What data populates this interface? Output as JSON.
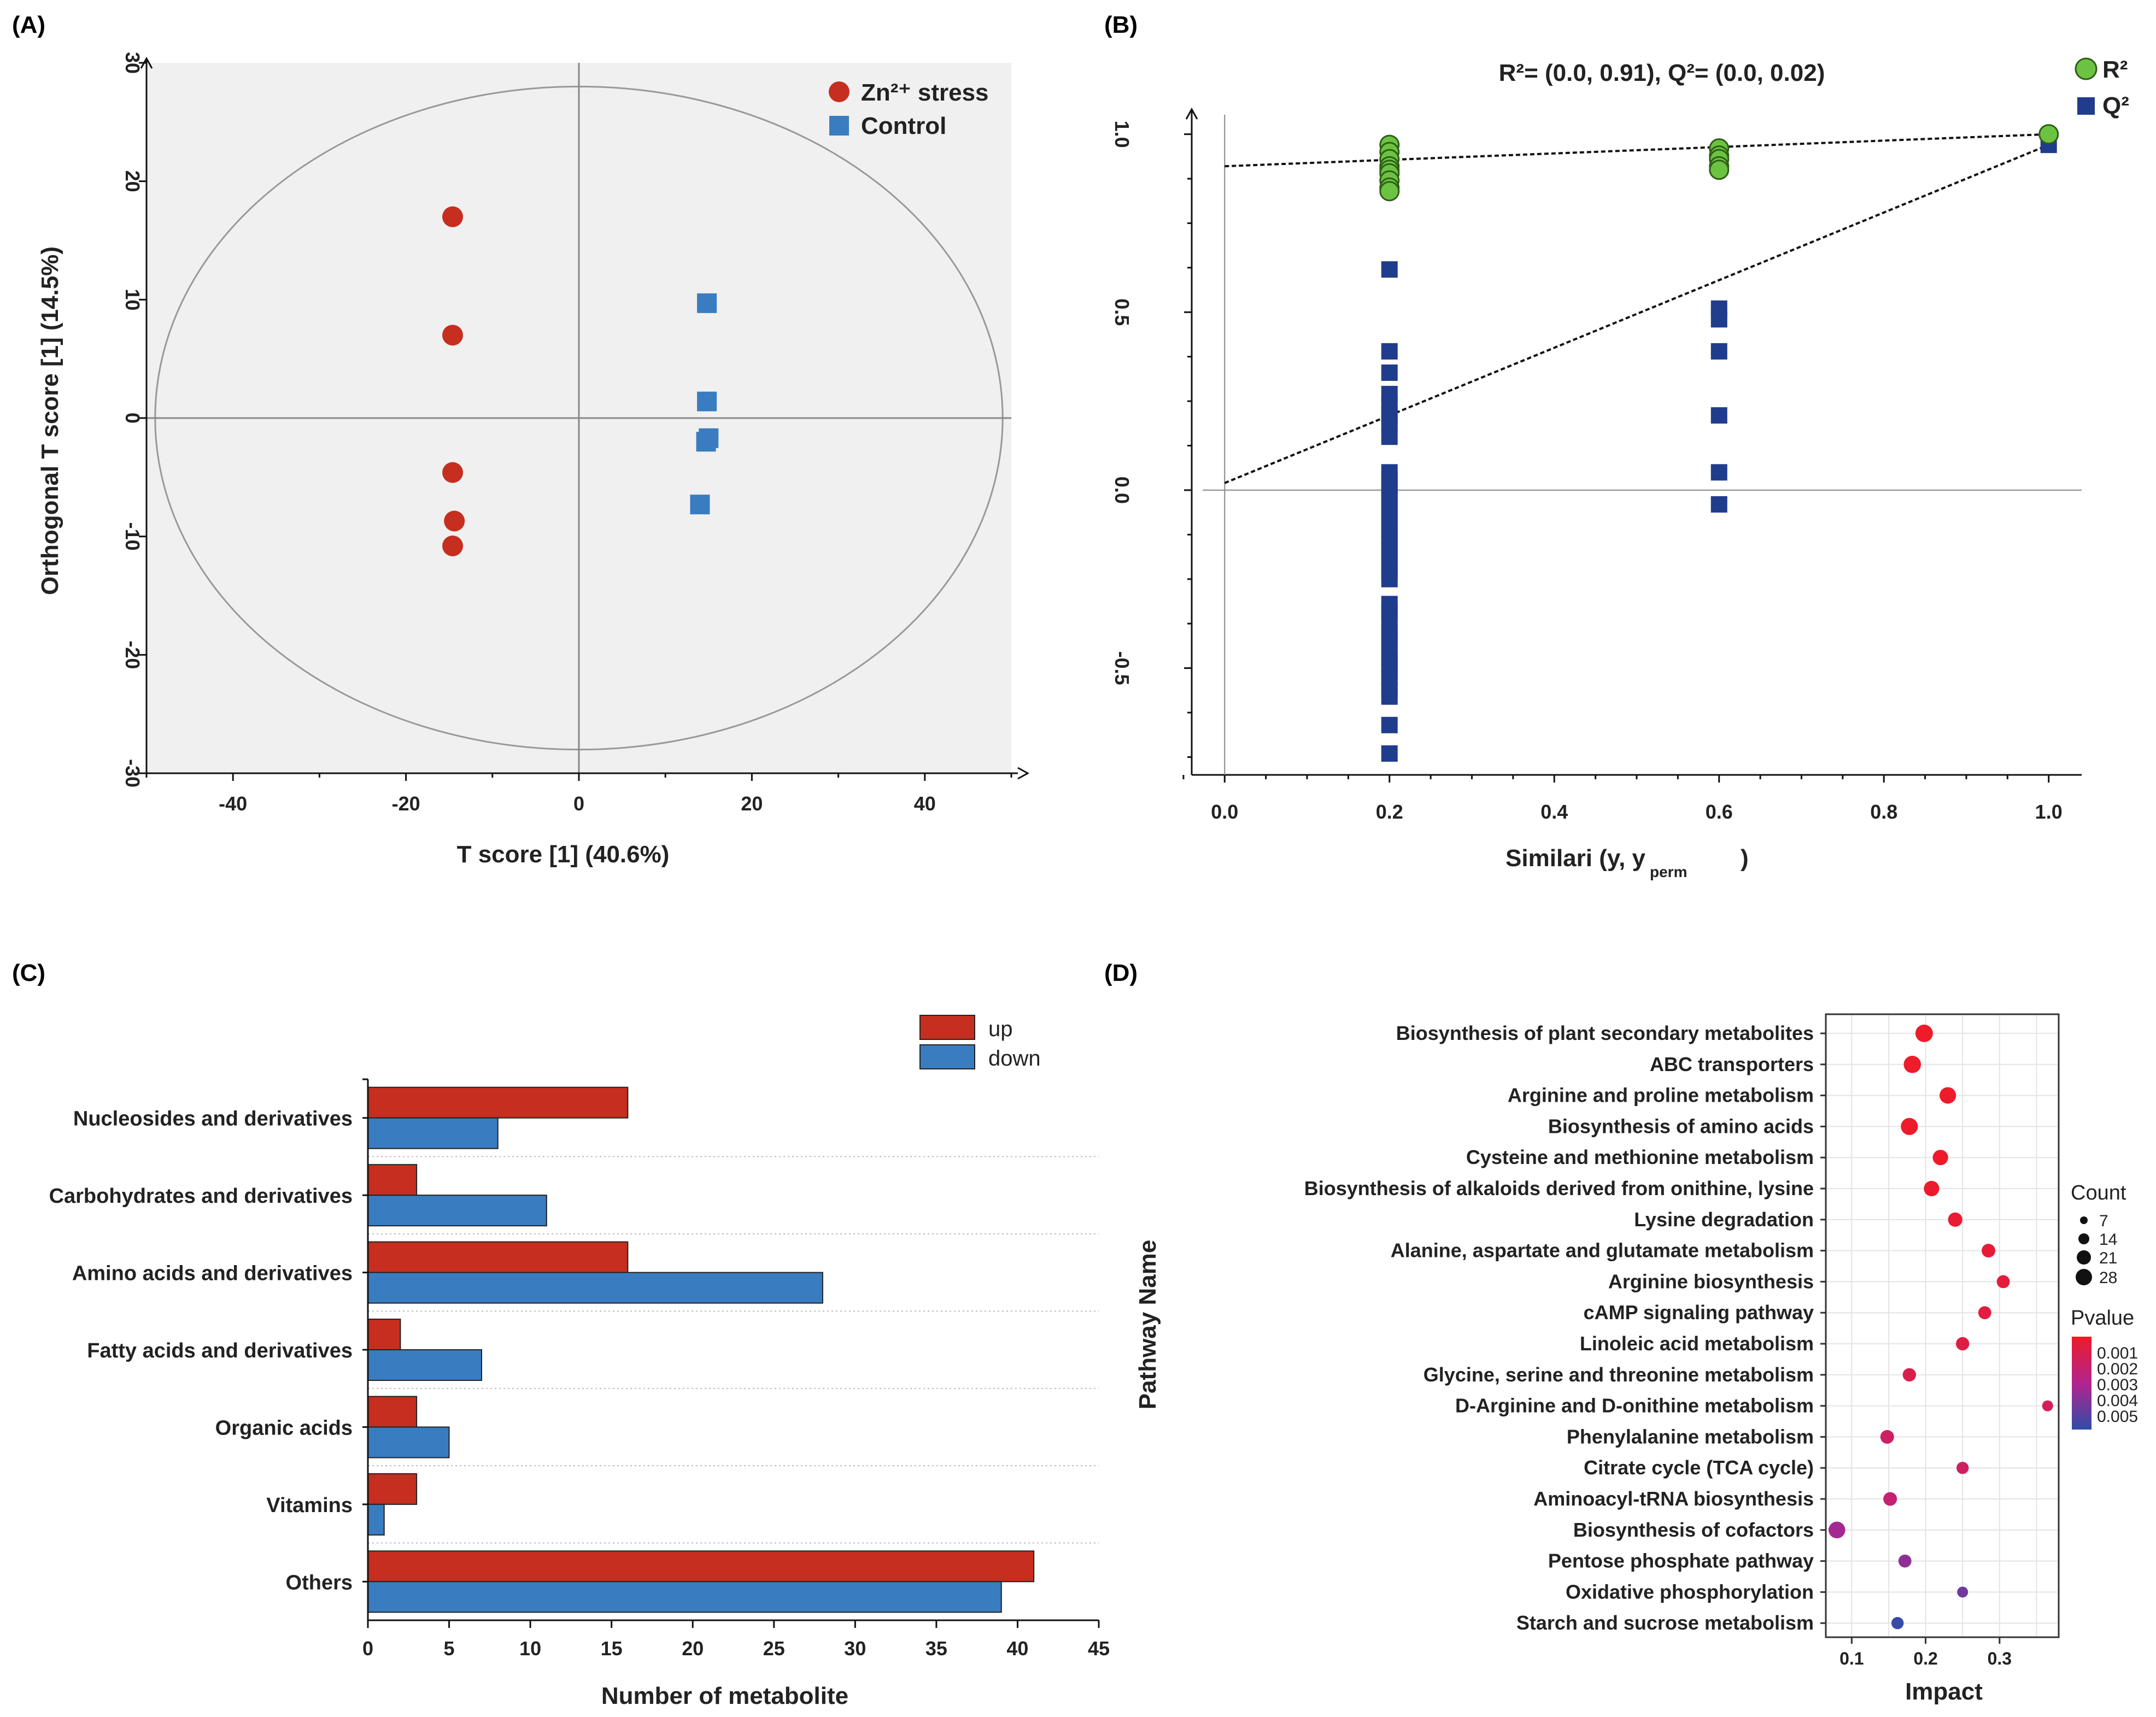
{
  "panel_labels": {
    "a": "(A)",
    "b": "(B)",
    "c": "(C)",
    "d": "(D)"
  },
  "colors": {
    "red": "#c62e1f",
    "blue": "#3a7cc0",
    "green": "#6cc341",
    "navy": "#1f3d8c",
    "bg": "#f0f0f0"
  },
  "chart_data": [
    {
      "id": "A",
      "type": "scatter",
      "title": "",
      "xlabel": "T score [1] (40.6%)",
      "ylabel": "Orthogonal T score [1] (14.5%)",
      "xlim": [
        -50,
        50
      ],
      "ylim": [
        -30,
        30
      ],
      "xticks": [
        -40,
        -20,
        0,
        20,
        40
      ],
      "yticks": [
        -30,
        -20,
        -10,
        0,
        10,
        20,
        30
      ],
      "series": [
        {
          "name": "Zn²⁺ stress",
          "marker": "circle",
          "color": "#c62e1f",
          "points": [
            [
              -14.6,
              17.0
            ],
            [
              -14.6,
              7.0
            ],
            [
              -14.6,
              -4.6
            ],
            [
              -14.4,
              -8.7
            ],
            [
              -14.6,
              -10.8
            ]
          ]
        },
        {
          "name": "Control",
          "marker": "square",
          "color": "#3a7cc0",
          "points": [
            [
              14.8,
              9.7
            ],
            [
              14.8,
              1.4
            ],
            [
              15.0,
              -1.7
            ],
            [
              14.7,
              -2.0
            ],
            [
              14.0,
              -7.3
            ]
          ]
        }
      ],
      "ellipse": {
        "cx": 0,
        "cy": 0,
        "rx": 49,
        "ry": 28
      }
    },
    {
      "id": "B",
      "type": "scatter",
      "title": "R²= (0.0, 0.91), Q²= (0.0, 0.02)",
      "xlabel": "Similari (y, y",
      "xlabel_sub": "perm",
      "xlabel_end": ")",
      "ylabel": "",
      "xlim": [
        -0.04,
        1.04
      ],
      "ylim": [
        -0.8,
        1.07
      ],
      "xticks": [
        "0.0",
        "0.2",
        "0.4",
        "0.6",
        "0.8",
        "1.0"
      ],
      "yticks": [
        "-0.5",
        "0.0",
        "0.5",
        "1.0"
      ],
      "series": [
        {
          "name": "R²",
          "marker": "circle",
          "color": "#6cc341",
          "x": [
            0.2,
            0.2,
            0.2,
            0.2,
            0.2,
            0.2,
            0.2,
            0.2,
            0.2,
            0.6,
            0.6,
            0.6,
            0.6,
            0.6,
            1.0
          ],
          "y": [
            0.97,
            0.95,
            0.93,
            0.91,
            0.9,
            0.89,
            0.87,
            0.85,
            0.84,
            0.96,
            0.94,
            0.93,
            0.91,
            0.9,
            1.0
          ]
        },
        {
          "name": "Q²",
          "marker": "square",
          "color": "#1f3d8c",
          "x": [
            0.2,
            0.2,
            0.2,
            0.2,
            0.2,
            0.2,
            0.2,
            0.2,
            0.2,
            0.2,
            0.2,
            0.2,
            0.2,
            0.2,
            0.2,
            0.2,
            0.2,
            0.2,
            0.2,
            0.2,
            0.2,
            0.2,
            0.2,
            0.2,
            0.2,
            0.2,
            0.2,
            0.2,
            0.2,
            0.2,
            0.2,
            0.2,
            0.2,
            0.2,
            0.2,
            0.2,
            0.2,
            0.2,
            0.6,
            0.6,
            0.6,
            0.6,
            0.6,
            0.6,
            1.0
          ],
          "y": [
            0.62,
            0.39,
            0.33,
            0.27,
            0.24,
            0.21,
            0.19,
            0.15,
            0.05,
            0.03,
            0.01,
            -0.01,
            -0.03,
            -0.05,
            -0.07,
            -0.09,
            -0.11,
            -0.13,
            -0.15,
            -0.17,
            -0.19,
            -0.21,
            -0.23,
            -0.25,
            -0.32,
            -0.34,
            -0.37,
            -0.4,
            -0.42,
            -0.45,
            -0.47,
            -0.49,
            -0.51,
            -0.53,
            -0.56,
            -0.58,
            -0.66,
            -0.74,
            0.51,
            0.48,
            0.39,
            0.21,
            0.05,
            -0.04,
            0.97
          ]
        }
      ],
      "trend_lines": [
        {
          "name": "R²",
          "from": [
            0.0,
            0.91
          ],
          "to": [
            1.0,
            1.0
          ]
        },
        {
          "name": "Q²",
          "from": [
            0.0,
            0.02
          ],
          "to": [
            1.0,
            0.97
          ]
        }
      ]
    },
    {
      "id": "C",
      "type": "bar",
      "orientation": "horizontal",
      "xlabel": "Number of metabolite",
      "ylabel": "",
      "xlim": [
        0,
        45
      ],
      "xticks": [
        0,
        5,
        10,
        15,
        20,
        25,
        30,
        35,
        40,
        45
      ],
      "categories": [
        "Nucleosides and derivatives",
        "Carbohydrates and derivatives",
        "Amino acids and derivatives",
        "Fatty acids and derivatives",
        "Organic acids",
        "Vitamins",
        "Others"
      ],
      "series": [
        {
          "name": "up",
          "color": "#c62e1f",
          "values": [
            16,
            3,
            16,
            2,
            3,
            3,
            41
          ]
        },
        {
          "name": "down",
          "color": "#3a7cc0",
          "values": [
            8,
            11,
            28,
            7,
            5,
            1,
            39
          ]
        }
      ]
    },
    {
      "id": "D",
      "type": "scatter",
      "subtype": "bubble",
      "xlabel": "Impact",
      "ylabel": "Pathway Name",
      "xlim": [
        0.065,
        0.38
      ],
      "xticks": [
        "0.1",
        "0.2",
        "0.3"
      ],
      "categories": [
        "Biosynthesis of plant secondary metabolites",
        "ABC transporters",
        "Arginine and proline metabolism",
        "Biosynthesis of amino acids",
        "Cysteine and methionine metabolism",
        "Biosynthesis of alkaloids derived from onithine, lysine",
        "Lysine degradation",
        "Alanine, aspartate and glutamate metabolism",
        "Arginine biosynthesis",
        "cAMP signaling pathway",
        "Linoleic acid metabolism",
        "Glycine, serine and threonine metabolism",
        "D-Arginine and D-onithine metabolism",
        "Phenylalanine metabolism",
        "Citrate cycle (TCA cycle)",
        "Aminoacyl-tRNA biosynthesis",
        "Biosynthesis of cofactors",
        "Pentose phosphate pathway",
        "Oxidative phosphorylation",
        "Starch and sucrose metabolism"
      ],
      "impact": [
        0.198,
        0.182,
        0.23,
        0.178,
        0.22,
        0.208,
        0.24,
        0.285,
        0.305,
        0.28,
        0.25,
        0.178,
        0.365,
        0.148,
        0.25,
        0.152,
        0.08,
        0.172,
        0.25,
        0.162
      ],
      "count": [
        28,
        27,
        24,
        26,
        20,
        20,
        16,
        14,
        12,
        12,
        13,
        13,
        7,
        14,
        10,
        14,
        25,
        12,
        7,
        10
      ],
      "pvalue": [
        0.0002,
        0.0002,
        0.0002,
        0.0002,
        0.0002,
        0.0003,
        0.0004,
        0.0005,
        0.0006,
        0.0007,
        0.0008,
        0.001,
        0.0012,
        0.0015,
        0.0015,
        0.0018,
        0.0028,
        0.0033,
        0.004,
        0.0053
      ],
      "legend": {
        "count_title": "Count",
        "count_values": [
          "7",
          "14",
          "21",
          "28"
        ],
        "pvalue_title": "Pvalue",
        "pvalue_ticks": [
          "0.001",
          "0.002",
          "0.003",
          "0.004",
          "0.005"
        ]
      }
    }
  ]
}
